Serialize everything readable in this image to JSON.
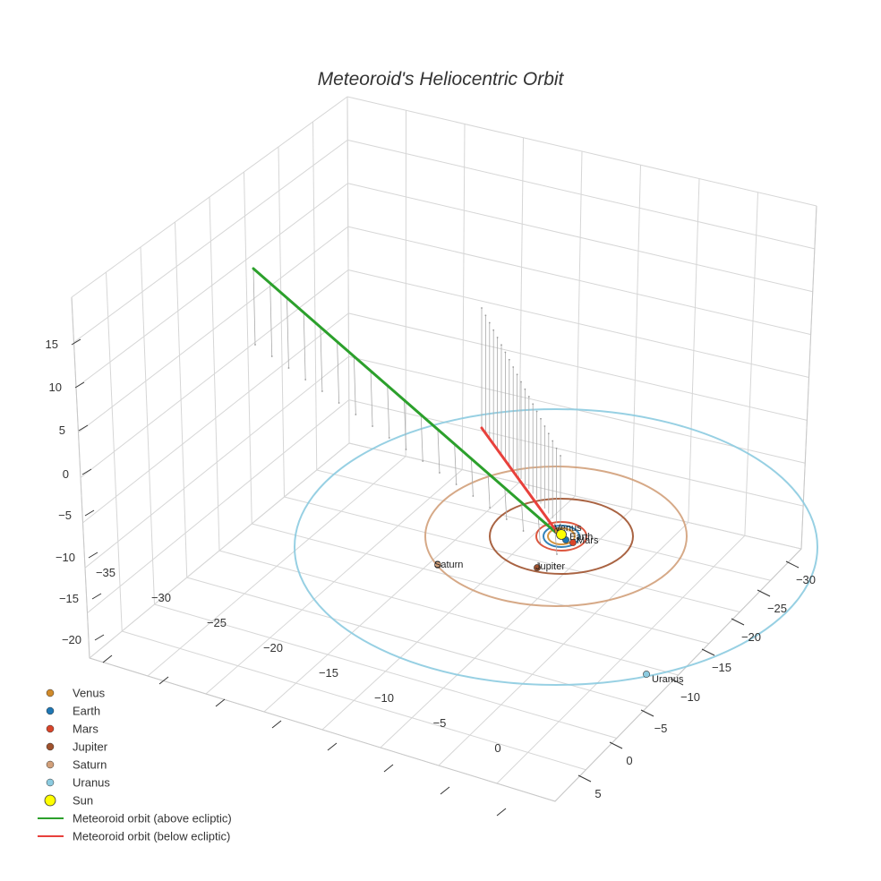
{
  "chart_data": {
    "type": "scatter",
    "title": "Meteoroid's Heliocentric Orbit",
    "xlabel": "",
    "ylabel": "",
    "zlabel": "",
    "x_ticks": [
      "−35",
      "−30",
      "−25",
      "−20",
      "−15",
      "−10",
      "−5",
      "0"
    ],
    "y_ticks": [
      "−30",
      "−25",
      "−20",
      "−15",
      "−10",
      "−5",
      "0",
      "5"
    ],
    "z_ticks": [
      "15",
      "10",
      "5",
      "0",
      "−5",
      "−10",
      "−15",
      "−20"
    ],
    "grid": true,
    "legend_position": "bottom-left",
    "planets": [
      {
        "name": "Venus",
        "label": "Venus",
        "color": "#d08a2a"
      },
      {
        "name": "Earth",
        "label": "Earth",
        "color": "#1f77b4"
      },
      {
        "name": "Mars",
        "label": "Mars",
        "color": "#d9452a"
      },
      {
        "name": "Jupiter",
        "label": "Jupiter",
        "color": "#a0522d"
      },
      {
        "name": "Saturn",
        "label": "Saturn",
        "color": "#d2a07a"
      },
      {
        "name": "Uranus",
        "label": "Uranus",
        "color": "#8ccbe0"
      }
    ],
    "sun": {
      "name": "Sun",
      "color": "#ffff00"
    },
    "series": [
      {
        "name": "Meteoroid orbit (above ecliptic)",
        "color": "#2ca02c"
      },
      {
        "name": "Meteoroid orbit (below ecliptic)",
        "color": "#e8413c"
      }
    ]
  }
}
